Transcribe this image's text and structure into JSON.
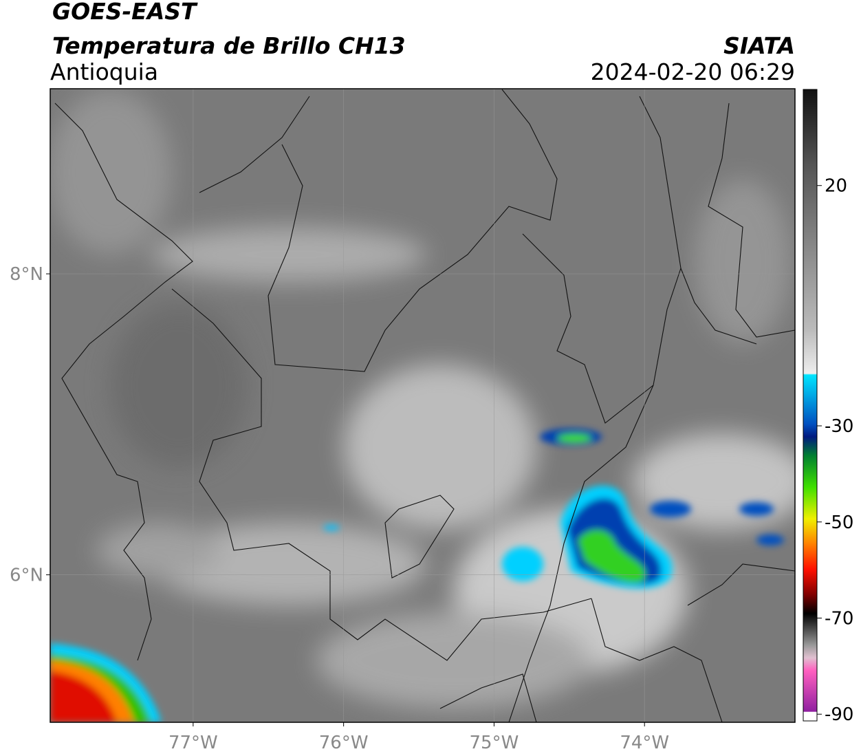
{
  "header": {
    "line1": "GOES-EAST",
    "line2": "Temperatura de Brillo CH13",
    "region": "Antioquia",
    "source": "SIATA",
    "datetime": "2024-02-20 06:29"
  },
  "chart_data": {
    "type": "map",
    "xlim": [
      -77.95,
      -73
    ],
    "ylim": [
      5.02,
      9.23
    ],
    "xticks": [
      {
        "value": -77,
        "label": "77°W"
      },
      {
        "value": -76,
        "label": "76°W"
      },
      {
        "value": -75,
        "label": "75°W"
      },
      {
        "value": -74,
        "label": "74°W"
      }
    ],
    "yticks": [
      {
        "value": 6,
        "label": "6°N"
      },
      {
        "value": 8,
        "label": "8°N"
      }
    ],
    "grid": true,
    "colorbar": {
      "lim": [
        -91.4,
        40
      ],
      "ticks": [
        20,
        -30,
        -50,
        -70,
        -90
      ]
    }
  }
}
